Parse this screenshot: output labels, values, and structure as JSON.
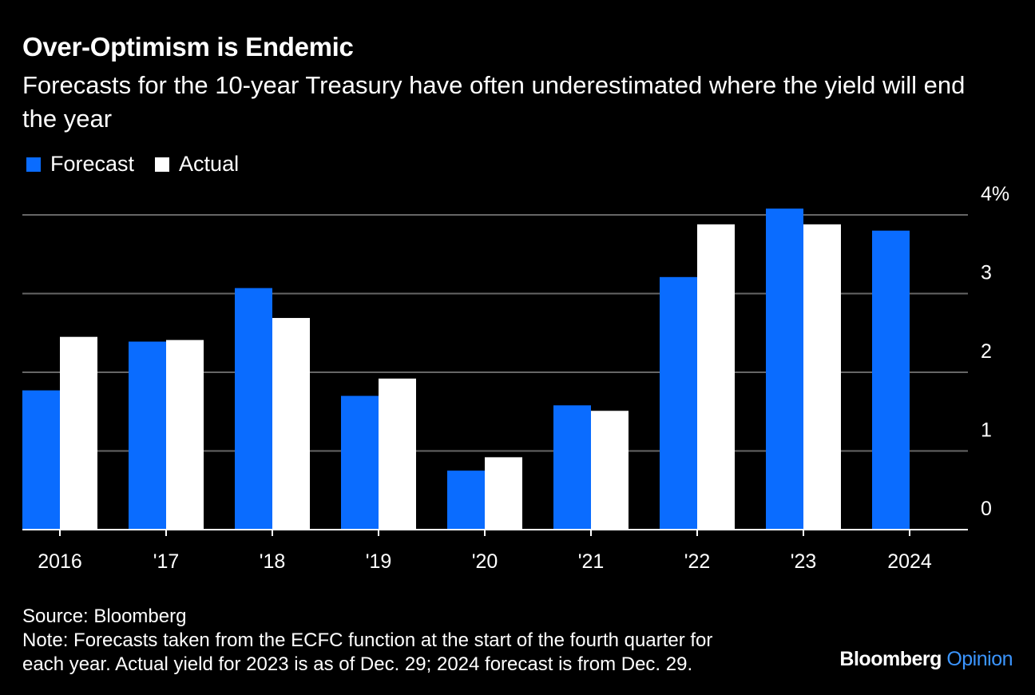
{
  "header": {
    "title": "Over-Optimism is Endemic",
    "subtitle": "Forecasts for the 10-year Treasury have often underestimated where the yield will end the year"
  },
  "colors": {
    "forecast": "#0a6cff",
    "actual": "#ffffff",
    "background": "#000000",
    "grid": "#666666"
  },
  "chart_data": {
    "type": "bar",
    "categories": [
      "2016",
      "'17",
      "'18",
      "'19",
      "'20",
      "'21",
      "'22",
      "'23",
      "2024"
    ],
    "series": [
      {
        "name": "Forecast",
        "values": [
          1.77,
          2.39,
          3.07,
          1.7,
          0.75,
          1.58,
          3.21,
          4.08,
          3.8
        ]
      },
      {
        "name": "Actual",
        "values": [
          2.45,
          2.41,
          2.69,
          1.92,
          0.92,
          1.51,
          3.88,
          3.88,
          null
        ]
      }
    ],
    "yticks": [
      "0",
      "1",
      "2",
      "3",
      "4%"
    ],
    "ylim": [
      0,
      4
    ],
    "grid": true,
    "legend": "top-left"
  },
  "footer": {
    "source": "Source: Bloomberg",
    "note_line1": "Note: Forecasts taken from the ECFC function at the start of the fourth quarter for",
    "note_line2": "each year. Actual yield for 2023 is as of Dec. 29; 2024 forecast is from Dec. 29."
  },
  "brand": {
    "name": "Bloomberg",
    "suffix": "Opinion"
  }
}
